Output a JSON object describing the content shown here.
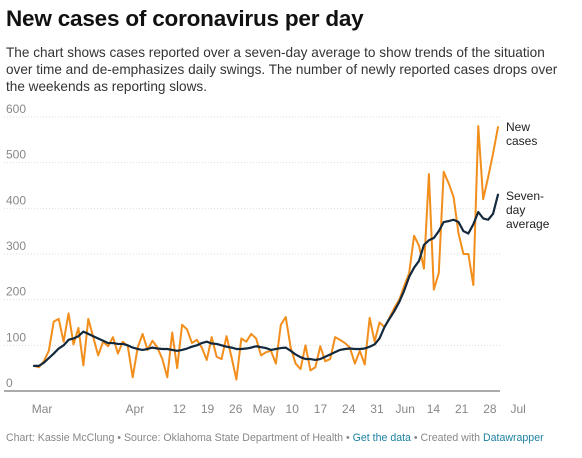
{
  "title": "New cases of coronavirus per day",
  "subtitle": "The chart shows cases reported over a seven-day average to show trends of the situation over time and de-emphasizes daily swings. The number of newly reported cases drops over the weekends as reporting slows.",
  "footer": {
    "chart_credit": "Chart: Kassie McClung",
    "sep1": " • ",
    "source": "Source: Oklahoma State Department of Health",
    "sep2": " • ",
    "get_data": "Get the data",
    "sep3": " • ",
    "created_with": "Created with ",
    "datawrapper": "Datawrapper"
  },
  "colors": {
    "new_cases": "#f28e1c",
    "seven_day": "#13293d",
    "grid": "#dedede",
    "tick_text": "#888888"
  },
  "chart_data": {
    "type": "line",
    "title": "New cases of coronavirus per day",
    "xlabel": "",
    "ylabel": "",
    "ylim": [
      0,
      600
    ],
    "yticks": [
      0,
      100,
      200,
      300,
      400,
      500,
      600
    ],
    "grid": true,
    "x_start": "2020-03-07",
    "x_end": "2020-06-30",
    "xticks": [
      {
        "date": "2020-03-09",
        "label": "Mar"
      },
      {
        "date": "2020-04-01",
        "label": "Apr"
      },
      {
        "date": "2020-04-12",
        "label": "12"
      },
      {
        "date": "2020-04-19",
        "label": "19"
      },
      {
        "date": "2020-04-26",
        "label": "26"
      },
      {
        "date": "2020-05-03",
        "label": "May"
      },
      {
        "date": "2020-05-10",
        "label": "10"
      },
      {
        "date": "2020-05-17",
        "label": "17"
      },
      {
        "date": "2020-05-24",
        "label": "24"
      },
      {
        "date": "2020-05-31",
        "label": "31"
      },
      {
        "date": "2020-06-07",
        "label": "Jun"
      },
      {
        "date": "2020-06-14",
        "label": "14"
      },
      {
        "date": "2020-06-21",
        "label": "21"
      },
      {
        "date": "2020-06-28",
        "label": "28"
      },
      {
        "date": "2020-07-05",
        "label": "Jul"
      }
    ],
    "series": [
      {
        "name": "New cases",
        "label_lines": [
          "New",
          "cases"
        ],
        "values": [
          55,
          52,
          65,
          88,
          152,
          158,
          108,
          170,
          102,
          138,
          56,
          158,
          118,
          78,
          108,
          98,
          118,
          82,
          108,
          98,
          30,
          95,
          125,
          90,
          110,
          95,
          70,
          30,
          128,
          50,
          145,
          135,
          105,
          112,
          95,
          68,
          118,
          75,
          70,
          120,
          75,
          25,
          115,
          108,
          125,
          115,
          78,
          85,
          88,
          60,
          145,
          162,
          95,
          60,
          48,
          100,
          45,
          52,
          98,
          65,
          70,
          118,
          112,
          105,
          95,
          60,
          88,
          58,
          160,
          108,
          150,
          140,
          160,
          182,
          200,
          230,
          258,
          340,
          318,
          268,
          475,
          222,
          258,
          480,
          455,
          425,
          345,
          300,
          300,
          232,
          580,
          420,
          468,
          520,
          578
        ]
      },
      {
        "name": "Seven-day average",
        "label_lines": [
          "Seven-",
          "day",
          "average"
        ],
        "values": [
          55,
          55,
          62,
          72,
          82,
          93,
          100,
          112,
          115,
          120,
          130,
          125,
          120,
          115,
          110,
          105,
          105,
          103,
          103,
          100,
          95,
          92,
          90,
          92,
          95,
          93,
          92,
          92,
          90,
          88,
          90,
          93,
          97,
          100,
          105,
          108,
          104,
          103,
          100,
          97,
          95,
          92,
          92,
          93,
          95,
          98,
          96,
          94,
          90,
          92,
          94,
          95,
          88,
          80,
          74,
          70,
          70,
          68,
          70,
          75,
          80,
          85,
          90,
          92,
          93,
          92,
          92,
          93,
          97,
          102,
          115,
          140,
          158,
          175,
          195,
          220,
          250,
          270,
          285,
          320,
          330,
          335,
          350,
          370,
          372,
          375,
          370,
          350,
          345,
          365,
          392,
          378,
          375,
          388,
          430
        ]
      }
    ]
  }
}
